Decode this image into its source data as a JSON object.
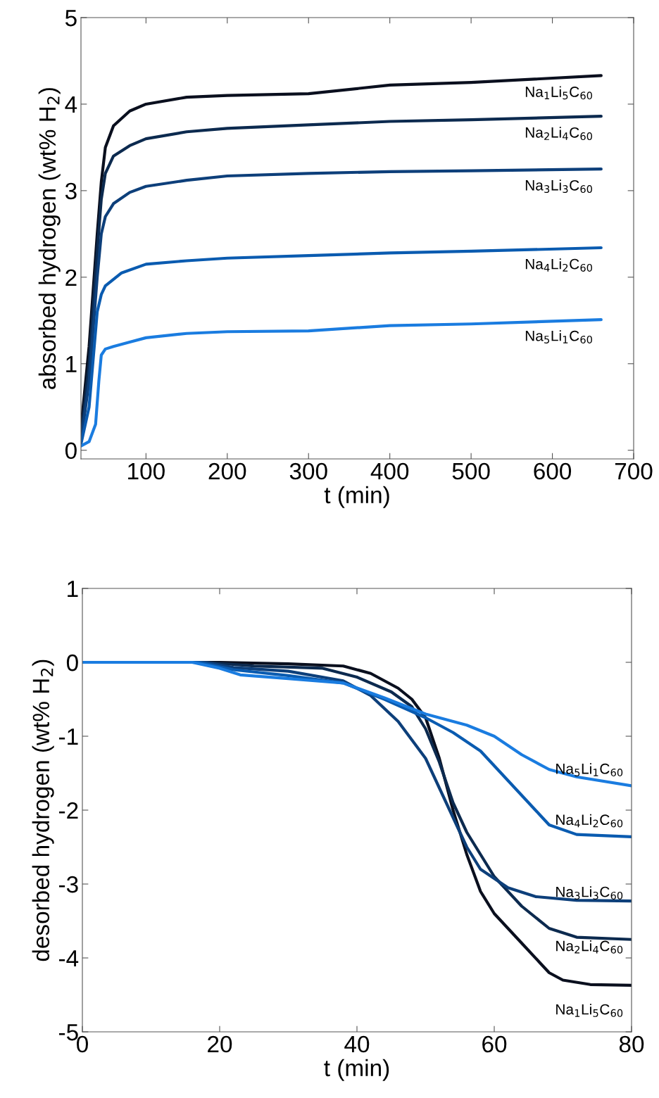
{
  "chart_data": [
    {
      "type": "line",
      "xlabel": "t (min)",
      "ylabel": "absorbed hydrogen (wt% H$_{2}$)",
      "xlim": [
        20,
        700
      ],
      "ylim": [
        -0.1,
        5
      ],
      "xticks": [
        100,
        200,
        300,
        400,
        500,
        600,
        700
      ],
      "yticks": [
        0,
        1,
        2,
        3,
        4,
        5
      ],
      "grid": false,
      "legend": false,
      "series": [
        {
          "name": "Na$_{1}$Li$_{5}$C$_{60}$",
          "color": "#0a0f1e",
          "x": [
            20,
            30,
            40,
            45,
            50,
            60,
            80,
            100,
            150,
            200,
            300,
            400,
            500,
            660
          ],
          "values": [
            0.25,
            1.2,
            2.5,
            3.1,
            3.5,
            3.75,
            3.92,
            4.0,
            4.08,
            4.1,
            4.12,
            4.22,
            4.25,
            4.33
          ]
        },
        {
          "name": "Na$_{2}$Li$_{4}$C$_{60}$",
          "color": "#0c2a4f",
          "x": [
            20,
            30,
            40,
            45,
            50,
            60,
            80,
            100,
            150,
            200,
            300,
            400,
            500,
            660
          ],
          "values": [
            0.15,
            1.0,
            2.3,
            2.9,
            3.2,
            3.4,
            3.52,
            3.6,
            3.68,
            3.72,
            3.76,
            3.8,
            3.82,
            3.86
          ]
        },
        {
          "name": "Na$_{3}$Li$_{3}$C$_{60}$",
          "color": "#0d3f7a",
          "x": [
            20,
            30,
            40,
            45,
            50,
            60,
            80,
            100,
            150,
            200,
            300,
            400,
            500,
            660
          ],
          "values": [
            0.1,
            0.8,
            2.0,
            2.5,
            2.7,
            2.85,
            2.98,
            3.05,
            3.12,
            3.17,
            3.2,
            3.22,
            3.23,
            3.25
          ]
        },
        {
          "name": "Na$_{4}$Li$_{2}$C$_{60}$",
          "color": "#0a5bb0",
          "x": [
            20,
            30,
            40,
            45,
            50,
            70,
            100,
            150,
            200,
            300,
            400,
            500,
            660
          ],
          "values": [
            0.07,
            0.5,
            1.6,
            1.8,
            1.9,
            2.05,
            2.15,
            2.19,
            2.22,
            2.25,
            2.28,
            2.3,
            2.34
          ]
        },
        {
          "name": "Na$_{5}$Li$_{1}$C$_{60}$",
          "color": "#1a7ce0",
          "x": [
            20,
            30,
            38,
            42,
            45,
            50,
            60,
            80,
            100,
            150,
            200,
            300,
            400,
            500,
            660
          ],
          "values": [
            0.05,
            0.1,
            0.3,
            0.8,
            1.1,
            1.17,
            1.2,
            1.25,
            1.3,
            1.35,
            1.37,
            1.38,
            1.44,
            1.46,
            1.51
          ]
        }
      ]
    },
    {
      "type": "line",
      "xlabel": "t (min)",
      "ylabel": "desorbed hydrogen (wt% H$_{2}$)",
      "xlim": [
        0,
        80
      ],
      "ylim": [
        -5,
        1
      ],
      "xticks": [
        0,
        20,
        40,
        60,
        80
      ],
      "yticks": [
        -5,
        -4,
        -3,
        -2,
        -1,
        0,
        1
      ],
      "grid": false,
      "legend": false,
      "series": [
        {
          "name": "Na$_{1}$Li$_{5}$C$_{60}$",
          "color": "#0a0f1e",
          "x": [
            0,
            20,
            30,
            38,
            42,
            46,
            48,
            50,
            52,
            54,
            56,
            58,
            60,
            64,
            68,
            70,
            74,
            80
          ],
          "values": [
            0,
            0,
            -0.02,
            -0.05,
            -0.15,
            -0.35,
            -0.5,
            -0.75,
            -1.3,
            -2.0,
            -2.6,
            -3.1,
            -3.4,
            -3.8,
            -4.2,
            -4.3,
            -4.36,
            -4.37
          ]
        },
        {
          "name": "Na$_{2}$Li$_{4}$C$_{60}$",
          "color": "#0c2a4f",
          "x": [
            0,
            18,
            25,
            35,
            40,
            45,
            48,
            50,
            52,
            54,
            56,
            58,
            60,
            64,
            68,
            72,
            80
          ],
          "values": [
            0,
            0,
            -0.05,
            -0.08,
            -0.2,
            -0.4,
            -0.6,
            -0.9,
            -1.35,
            -1.9,
            -2.3,
            -2.6,
            -2.9,
            -3.3,
            -3.6,
            -3.72,
            -3.75
          ]
        },
        {
          "name": "Na$_{3}$Li$_{3}$C$_{60}$",
          "color": "#0d3f7a",
          "x": [
            0,
            18,
            22,
            30,
            38,
            42,
            46,
            50,
            54,
            56,
            58,
            62,
            66,
            72,
            80
          ],
          "values": [
            0,
            0,
            -0.07,
            -0.12,
            -0.25,
            -0.45,
            -0.8,
            -1.3,
            -2.1,
            -2.5,
            -2.8,
            -3.05,
            -3.17,
            -3.22,
            -3.23
          ]
        },
        {
          "name": "Na$_{4}$Li$_{2}$C$_{60}$",
          "color": "#0a5bb0",
          "x": [
            0,
            17,
            22,
            30,
            38,
            44,
            50,
            54,
            58,
            62,
            66,
            68,
            72,
            80
          ],
          "values": [
            0,
            0,
            -0.1,
            -0.18,
            -0.28,
            -0.5,
            -0.75,
            -0.95,
            -1.2,
            -1.6,
            -2.0,
            -2.2,
            -2.33,
            -2.36
          ]
        },
        {
          "name": "Na$_{5}$Li$_{1}$C$_{60}$",
          "color": "#1a7ce0",
          "x": [
            0,
            16,
            20,
            23,
            30,
            38,
            44,
            50,
            56,
            60,
            64,
            68,
            72,
            80
          ],
          "values": [
            0,
            0,
            -0.08,
            -0.17,
            -0.22,
            -0.28,
            -0.48,
            -0.7,
            -0.85,
            -1.0,
            -1.25,
            -1.45,
            -1.55,
            -1.67
          ]
        }
      ]
    }
  ]
}
